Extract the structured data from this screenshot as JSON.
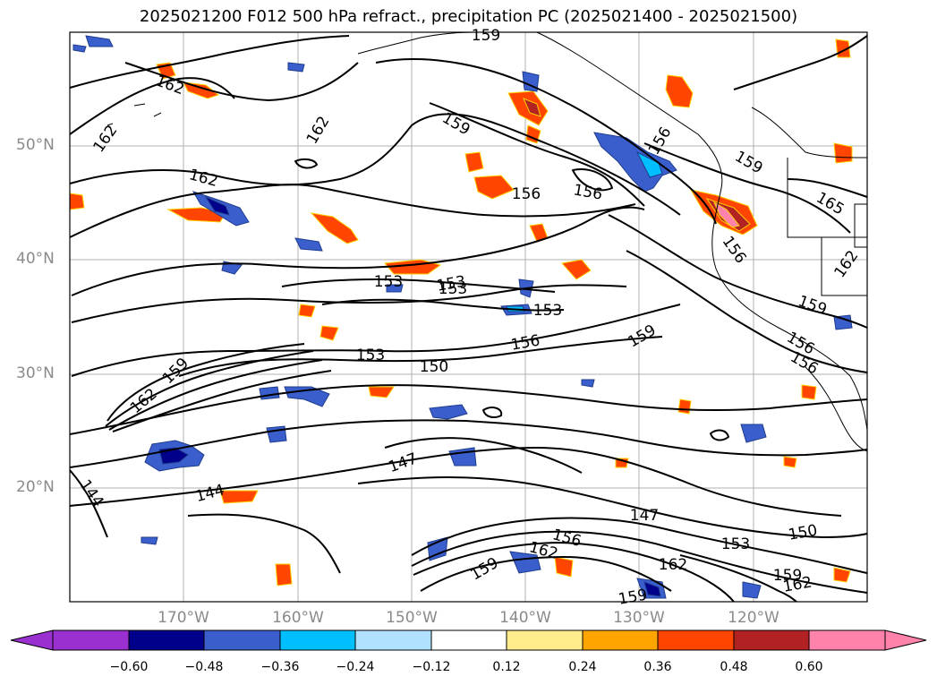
{
  "title": "2025021200 F012 500 hPa refract., precipitation PC (2025021400 - 2025021500)",
  "lat_labels": [
    "50°N",
    "40°N",
    "30°N",
    "20°N"
  ],
  "lon_labels": [
    "170°W",
    "160°W",
    "150°W",
    "140°W",
    "130°W",
    "120°W"
  ],
  "contour_labels": [
    "159",
    "162",
    "162",
    "162",
    "159",
    "162",
    "156",
    "156",
    "156",
    "159",
    "165",
    "156",
    "162",
    "153",
    "153",
    "153",
    "153",
    "159",
    "159",
    "156",
    "153",
    "150",
    "156",
    "156",
    "159",
    "162",
    "147",
    "144",
    "144",
    "147",
    "150",
    "153",
    "156",
    "162",
    "162",
    "159",
    "162",
    "159",
    "159"
  ],
  "colorbar": {
    "ticks": [
      "−0.60",
      "−0.48",
      "−0.36",
      "−0.24",
      "−0.12",
      "0.12",
      "0.24",
      "0.36",
      "0.48",
      "0.60"
    ],
    "colors": [
      "#9b30d0",
      "#00008b",
      "#3a5fcd",
      "#00bfff",
      "#b0e2ff",
      "#ffffff",
      "#ffec8b",
      "#ffa500",
      "#ff4500",
      "#b22222",
      "#ff82ab"
    ]
  }
}
